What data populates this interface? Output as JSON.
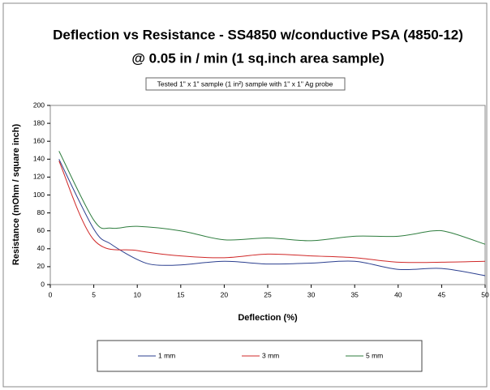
{
  "chart_data": {
    "type": "line",
    "title": "Deflection vs Resistance -  SS4850 w/conductive PSA (4850-12)",
    "subtitle": "@  0.05 in / min (1 sq.inch area sample)",
    "annotation": "Tested 1\" x 1\" sample (1 in²) sample with 1\" x 1\" Ag probe",
    "x_label": "Deflection (%)",
    "y_label": "Resistance (mOhm / square inch)",
    "xlim": [
      0,
      50
    ],
    "xticks": [
      0,
      5,
      10,
      15,
      20,
      25,
      30,
      35,
      40,
      45,
      50
    ],
    "ylim": [
      0,
      200
    ],
    "yticks": [
      0,
      20,
      40,
      60,
      80,
      100,
      120,
      140,
      160,
      180,
      200
    ],
    "grid": false,
    "series": [
      {
        "name": "1 mm",
        "color": "#2b3f8f",
        "x": [
          1,
          5,
          7,
          10,
          12,
          15,
          20,
          25,
          30,
          35,
          40,
          45,
          50
        ],
        "values": [
          140,
          62,
          45,
          28,
          22,
          22,
          26,
          23,
          24,
          26,
          17,
          18,
          10
        ]
      },
      {
        "name": "3 mm",
        "color": "#d02828",
        "x": [
          1,
          5,
          10,
          15,
          20,
          25,
          30,
          35,
          40,
          45,
          50
        ],
        "values": [
          138,
          50,
          38,
          32,
          30,
          34,
          32,
          30,
          25,
          25,
          26
        ]
      },
      {
        "name": "5 mm",
        "color": "#2e7d3e",
        "x": [
          1,
          5,
          7,
          10,
          15,
          20,
          25,
          30,
          35,
          40,
          44,
          46,
          50
        ],
        "values": [
          149,
          72,
          63,
          65,
          60,
          50,
          52,
          49,
          54,
          54,
          60,
          58,
          45
        ]
      }
    ]
  }
}
